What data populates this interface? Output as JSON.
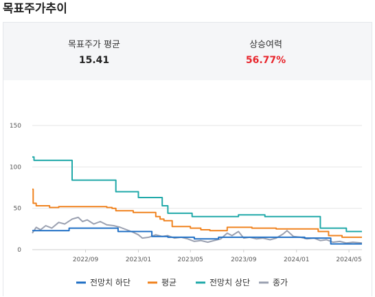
{
  "header": {
    "title": "목표주가추이"
  },
  "summary": {
    "avg_label": "목표주가 평균",
    "avg_value": "15.41",
    "upside_label": "상승여력",
    "upside_value": "56.77%"
  },
  "chart_data": {
    "type": "line",
    "xlabel": "",
    "ylabel": "",
    "x_range": [
      "2022-05-01",
      "2024-05-31"
    ],
    "ylim": [
      0,
      150
    ],
    "yticks": [
      0,
      50,
      100,
      150
    ],
    "xticks": [
      {
        "date": "2022-09-01",
        "label": "2022/09"
      },
      {
        "date": "2023-01-01",
        "label": "2023/01"
      },
      {
        "date": "2023-05-01",
        "label": "2023/05"
      },
      {
        "date": "2023-09-01",
        "label": "2023/09"
      },
      {
        "date": "2024-01-01",
        "label": "2024/01"
      },
      {
        "date": "2024-05-01",
        "label": "2024/05"
      }
    ],
    "grid": "horizontal",
    "legend_position": "bottom",
    "series": [
      {
        "name": "전망치 하단",
        "color": "#1f6fc5",
        "step": true,
        "points": [
          [
            "2022-05-01",
            23
          ],
          [
            "2022-07-25",
            26
          ],
          [
            "2022-11-15",
            22
          ],
          [
            "2023-02-01",
            16
          ],
          [
            "2023-03-10",
            15
          ],
          [
            "2023-05-10",
            13
          ],
          [
            "2023-07-05",
            15
          ],
          [
            "2024-01-20",
            14
          ],
          [
            "2024-03-20",
            7
          ],
          [
            "2024-05-31",
            7
          ]
        ]
      },
      {
        "name": "평균",
        "color": "#f0821e",
        "step": true,
        "points": [
          [
            "2022-05-01",
            73
          ],
          [
            "2022-05-03",
            56
          ],
          [
            "2022-05-10",
            53
          ],
          [
            "2022-06-10",
            51
          ],
          [
            "2022-07-01",
            52
          ],
          [
            "2022-10-20",
            51
          ],
          [
            "2022-11-01",
            50
          ],
          [
            "2022-11-10",
            47
          ],
          [
            "2022-12-20",
            45
          ],
          [
            "2023-02-10",
            40
          ],
          [
            "2023-02-20",
            37
          ],
          [
            "2023-03-01",
            35
          ],
          [
            "2023-03-20",
            28
          ],
          [
            "2023-05-01",
            26
          ],
          [
            "2023-05-25",
            24
          ],
          [
            "2023-06-15",
            23
          ],
          [
            "2023-07-25",
            27
          ],
          [
            "2023-09-20",
            26
          ],
          [
            "2023-11-15",
            25
          ],
          [
            "2024-01-15",
            25
          ],
          [
            "2024-02-20",
            22
          ],
          [
            "2024-03-15",
            17
          ],
          [
            "2024-04-15",
            15
          ],
          [
            "2024-05-31",
            15
          ]
        ]
      },
      {
        "name": "전망치 상단",
        "color": "#1fa8a8",
        "step": true,
        "points": [
          [
            "2022-05-01",
            112
          ],
          [
            "2022-05-05",
            108
          ],
          [
            "2022-08-01",
            84
          ],
          [
            "2022-11-10",
            70
          ],
          [
            "2023-01-01",
            63
          ],
          [
            "2023-02-25",
            53
          ],
          [
            "2023-03-10",
            44
          ],
          [
            "2023-05-05",
            40
          ],
          [
            "2023-08-20",
            42
          ],
          [
            "2023-10-20",
            40
          ],
          [
            "2024-02-25",
            26
          ],
          [
            "2024-04-25",
            22
          ],
          [
            "2024-05-31",
            22
          ]
        ]
      },
      {
        "name": "종가",
        "color": "#9aa0b0",
        "step": false,
        "points": [
          [
            "2022-05-01",
            20
          ],
          [
            "2022-05-10",
            27
          ],
          [
            "2022-05-20",
            24
          ],
          [
            "2022-06-01",
            29
          ],
          [
            "2022-06-15",
            26
          ],
          [
            "2022-07-01",
            33
          ],
          [
            "2022-07-15",
            31
          ],
          [
            "2022-08-01",
            37
          ],
          [
            "2022-08-15",
            39
          ],
          [
            "2022-08-25",
            34
          ],
          [
            "2022-09-05",
            36
          ],
          [
            "2022-09-20",
            31
          ],
          [
            "2022-10-05",
            34
          ],
          [
            "2022-10-20",
            30
          ],
          [
            "2022-11-05",
            29
          ],
          [
            "2022-11-20",
            27
          ],
          [
            "2022-12-05",
            24
          ],
          [
            "2022-12-20",
            21
          ],
          [
            "2023-01-01",
            18
          ],
          [
            "2023-01-10",
            14
          ],
          [
            "2023-01-25",
            15
          ],
          [
            "2023-02-10",
            18
          ],
          [
            "2023-02-25",
            16
          ],
          [
            "2023-03-10",
            17
          ],
          [
            "2023-03-25",
            14
          ],
          [
            "2023-04-10",
            15
          ],
          [
            "2023-04-25",
            13
          ],
          [
            "2023-05-10",
            10
          ],
          [
            "2023-05-25",
            11
          ],
          [
            "2023-06-10",
            9
          ],
          [
            "2023-06-25",
            11
          ],
          [
            "2023-07-10",
            13
          ],
          [
            "2023-07-25",
            20
          ],
          [
            "2023-08-05",
            17
          ],
          [
            "2023-08-20",
            22
          ],
          [
            "2023-09-01",
            14
          ],
          [
            "2023-09-15",
            15
          ],
          [
            "2023-10-01",
            13
          ],
          [
            "2023-10-15",
            14
          ],
          [
            "2023-11-01",
            12
          ],
          [
            "2023-11-15",
            14
          ],
          [
            "2023-12-01",
            19
          ],
          [
            "2023-12-10",
            23
          ],
          [
            "2023-12-25",
            16
          ],
          [
            "2024-01-10",
            15
          ],
          [
            "2024-01-25",
            13
          ],
          [
            "2024-02-10",
            14
          ],
          [
            "2024-02-25",
            11
          ],
          [
            "2024-03-10",
            12
          ],
          [
            "2024-03-25",
            9
          ],
          [
            "2024-04-10",
            10
          ],
          [
            "2024-04-25",
            8
          ],
          [
            "2024-05-10",
            9
          ],
          [
            "2024-05-31",
            8
          ]
        ]
      }
    ]
  }
}
